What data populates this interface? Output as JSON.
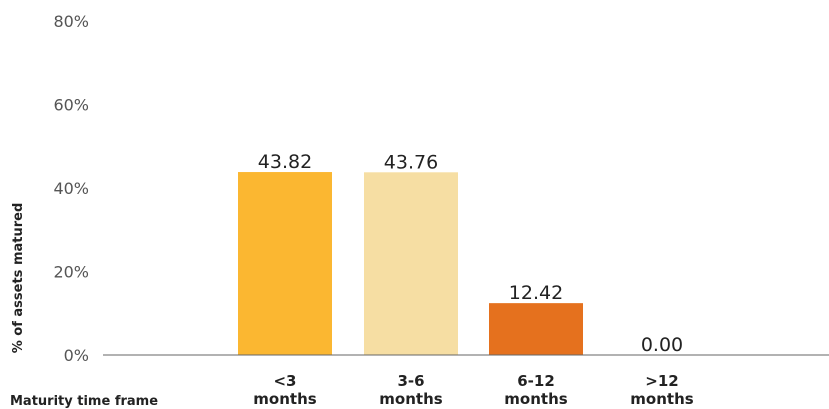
{
  "chart_data": {
    "type": "bar",
    "categories": [
      [
        "<3",
        "months"
      ],
      [
        "3-6",
        "months"
      ],
      [
        "6-12",
        "months"
      ],
      [
        ">12",
        "months"
      ]
    ],
    "values": [
      43.82,
      43.76,
      12.42,
      0.0
    ],
    "value_labels": [
      "43.82",
      "43.76",
      "12.42",
      "0.00"
    ],
    "colors": [
      "#FBB731",
      "#F6DEA3",
      "#E5711E",
      "#E5711E"
    ],
    "ylabel": "% of assets matured",
    "xlabel": "Maturity time frame",
    "ylim": [
      0,
      80
    ],
    "yticks": [
      "0%",
      "20%",
      "40%",
      "60%",
      "80%"
    ],
    "ytick_values": [
      0,
      20,
      40,
      60,
      80
    ],
    "grid": false,
    "axis_color": "#666666"
  }
}
